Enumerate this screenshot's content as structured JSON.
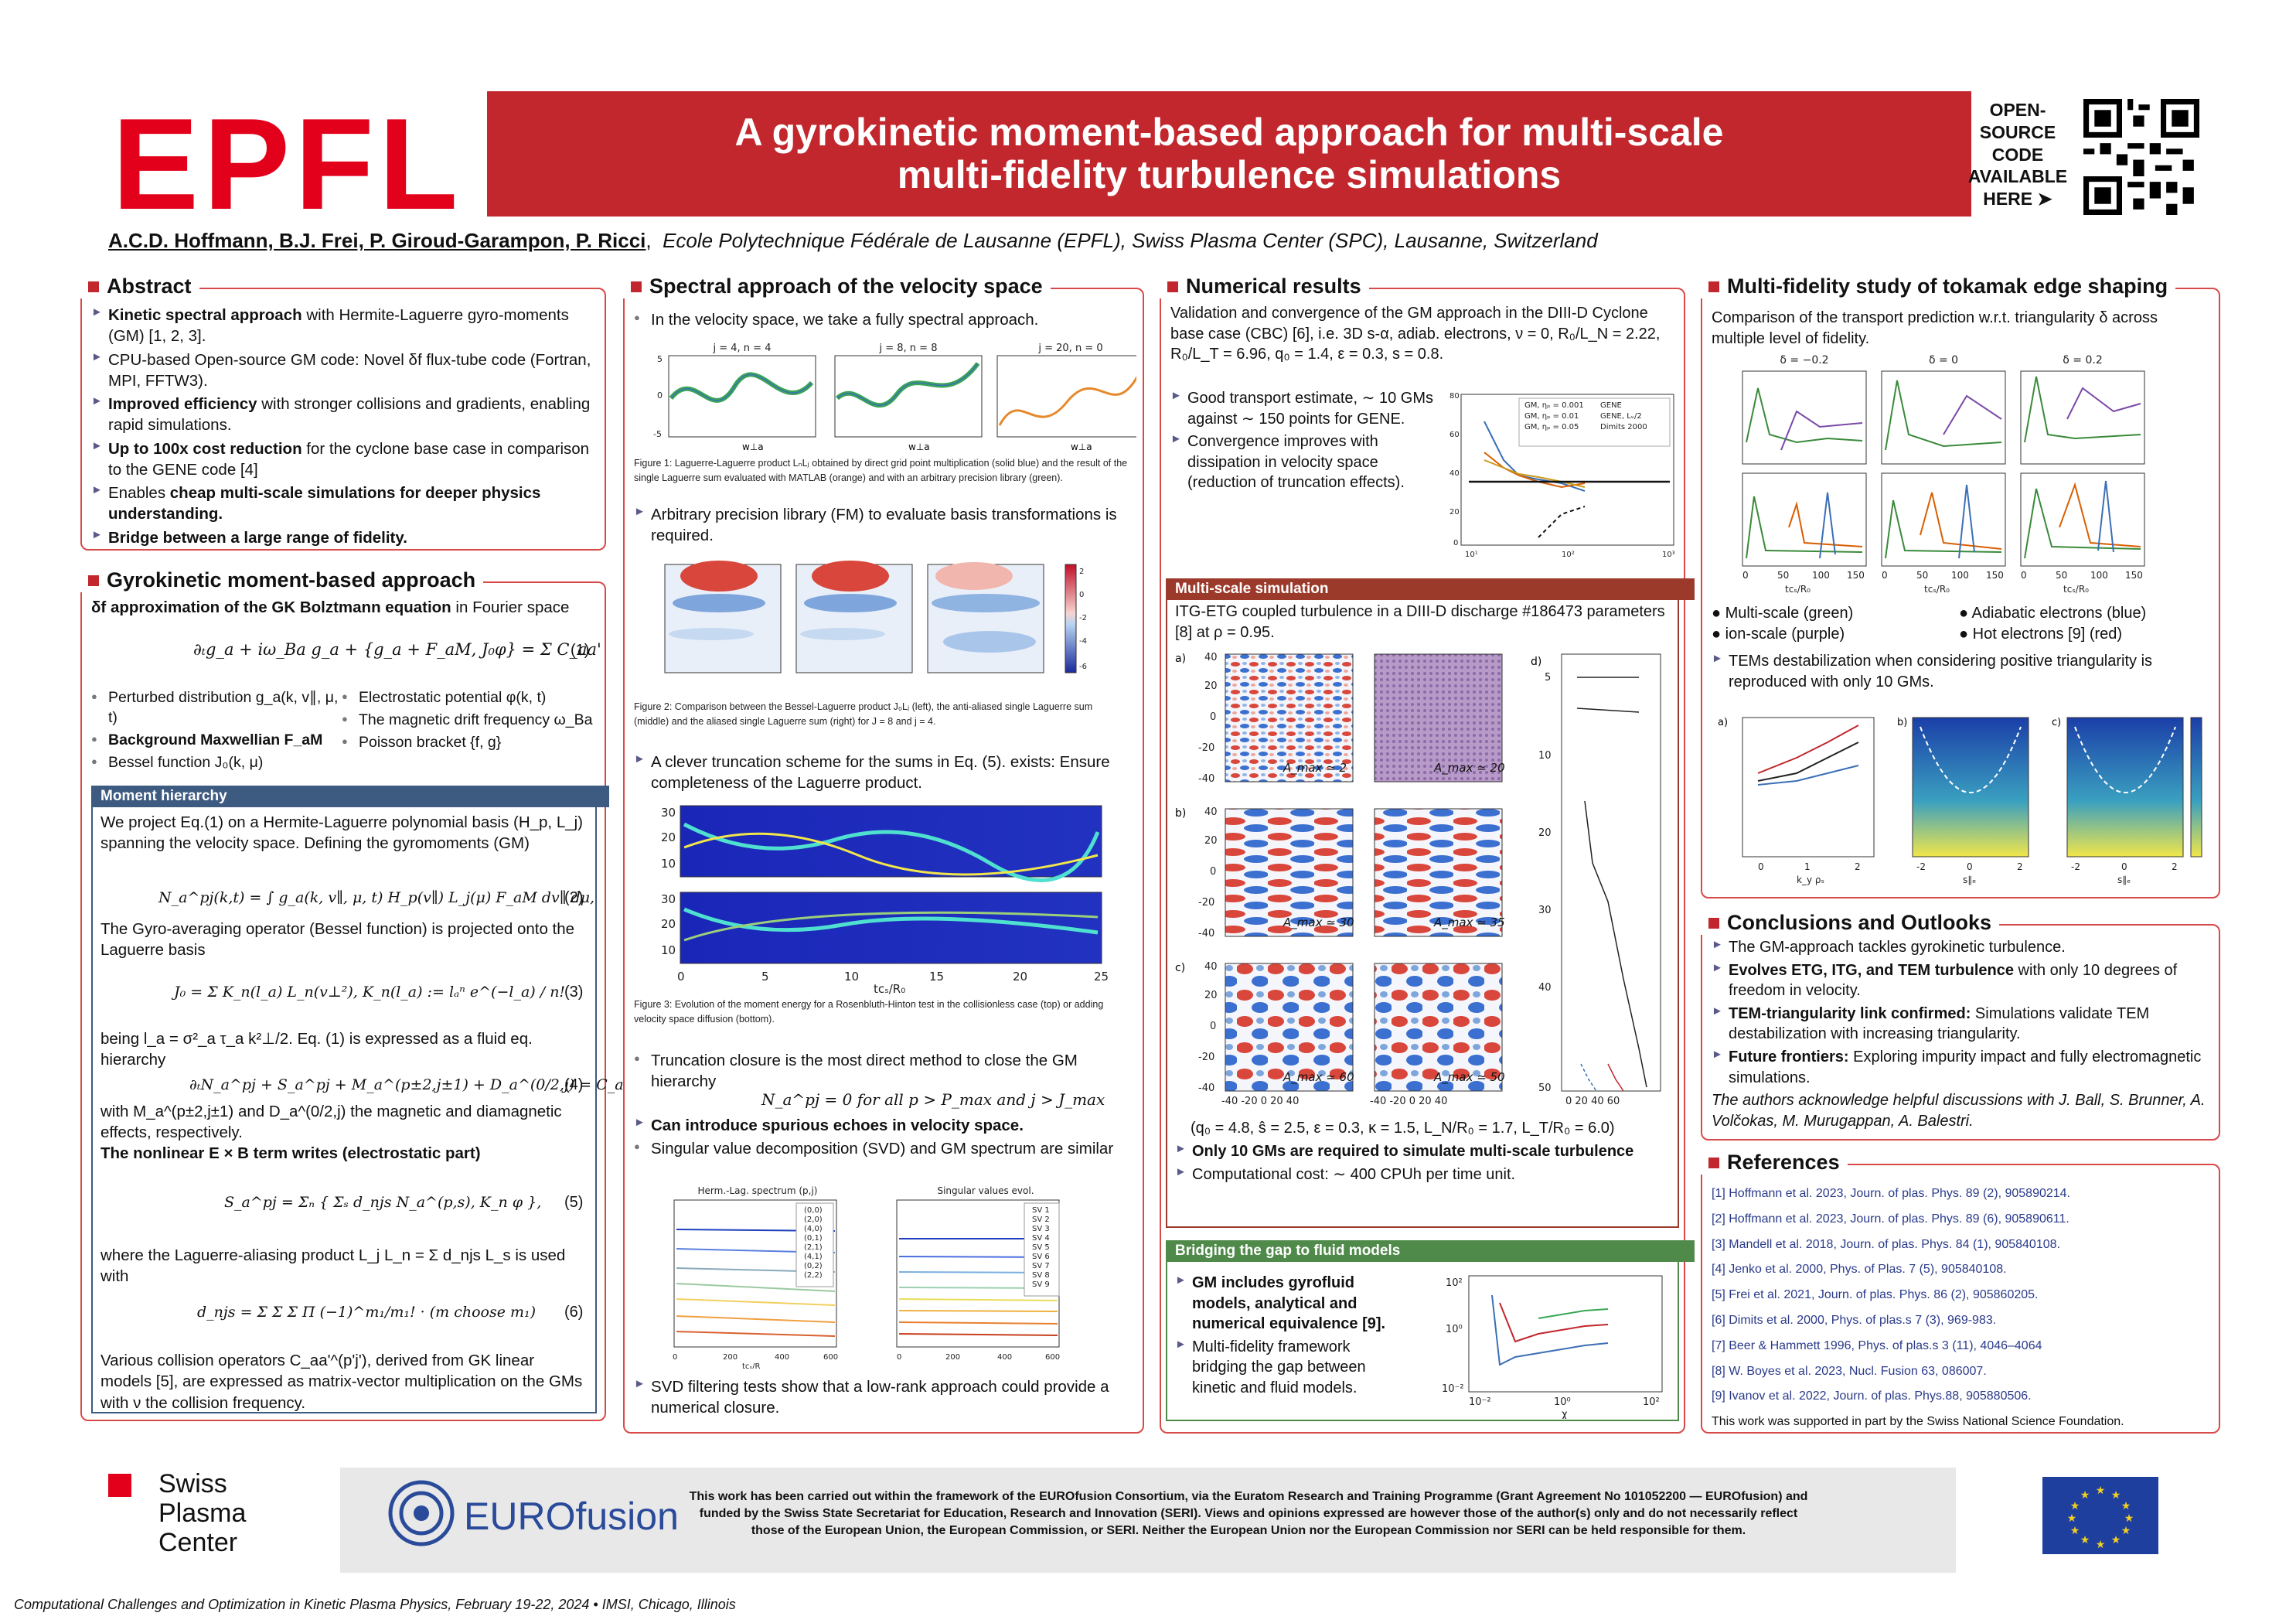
{
  "header": {
    "logo": "EPFL",
    "title_line1": "A gyrokinetic moment-based approach for multi-scale",
    "title_line2": "multi-fidelity turbulence simulations",
    "oss": [
      "OPEN-",
      "SOURCE",
      "CODE",
      "AVAILABLE",
      "HERE ➤"
    ],
    "authors": "A.C.D. Hoffmann, B.J. Frei, P. Giroud-Garampon, P. Ricci",
    "affiliation": "Ecole Polytechnique Fédérale de Lausanne (EPFL), Swiss Plasma Center (SPC), Lausanne, Switzerland",
    "accent": "#c1272d"
  },
  "abstract": {
    "title": "Abstract",
    "items": [
      [
        "Kinetic spectral approach",
        " with Hermite-Laguerre gyro-moments (GM) [1, 2, 3]."
      ],
      [
        "",
        "CPU-based Open-source GM code: Novel δf flux-tube code (Fortran, MPI, FFTW3)."
      ],
      [
        "Improved efficiency",
        " with stronger collisions and gradients, enabling rapid simulations."
      ],
      [
        "Up to 100x cost reduction",
        " for the cyclone base case in comparison to the GENE code [4]"
      ],
      [
        "Enables ",
        "cheap multi-scale simulations for deeper physics understanding."
      ],
      [
        "Bridge between a large range of fidelity.",
        ""
      ]
    ]
  },
  "gk": {
    "title": "Gyrokinetic moment-based approach",
    "intro_bold": "δf approximation of the GK Bolztmann equation",
    "intro_rest": " in Fourier space",
    "eq1": "∂ₜg_a + iω_Ba g_a + {g_a + F_aM, J₀φ} = Σ C_aa'",
    "n1": "(1)",
    "left_items": [
      "Perturbed distribution g_a(k, v∥, μ, t)",
      "Background Maxwellian F_aM",
      "Bessel function J₀(k, μ)"
    ],
    "right_items": [
      "Electrostatic potential φ(k, t)",
      "The magnetic drift frequency ω_Ba",
      "Poisson bracket {f, g}"
    ],
    "moment_hdr": "Moment hierarchy",
    "p1": "We project Eq.(1) on a Hermite-Laguerre polynomial basis (H_p, L_j) spanning the velocity space. Defining the gyromoments (GM)",
    "eq2": "N_a^pj(k,t) = ∫ g_a(k, v∥, μ, t) H_p(v∥) L_j(μ) F_aM dv∥ dμ,",
    "n2": "(2)",
    "p2": "The Gyro-averaging operator (Bessel function) is projected onto the Laguerre basis",
    "eq3": "J₀ = Σ K_n(l_a) L_n(v⊥²),   K_n(l_a) := lₐⁿ e^(−l_a) / n!",
    "n3": "(3)",
    "p3": "being l_a = σ²_a τ_a k²⊥/2. Eq. (1) is expressed as a fluid eq. hierarchy",
    "eq4": "∂ₜN_a^pj + S_a^pj + M_a^(p±2,j±1) + D_a^(0/2,j) = C_a^(p'j')",
    "n4": "(4)",
    "p4": "with M_a^(p±2,j±1) and D_a^(0/2,j) the magnetic and diamagnetic effects, respectively.",
    "p5": "The nonlinear E × B term writes (electrostatic part)",
    "eq5": "S_a^pj = Σₙ { Σₛ d_njs N_a^(p,s), K_n φ },",
    "n5": "(5)",
    "p6": "where the Laguerre-aliasing product L_j L_n = Σ d_njs L_s is used with",
    "eq6": "d_njs = Σ Σ Σ Π (−1)^m₁/m₁! · (m choose m₁)",
    "n6": "(6)",
    "p7": "Various collision operators C_aa'^(p'j'), derived from GK linear models [5], are expressed as matrix-vector multiplication on the GMs with ν the collision frequency."
  },
  "spectral": {
    "title": "Spectral approach of the velocity space",
    "intro": "In the velocity space, we take a fully spectral approach.",
    "fig1_titles": [
      "j = 4, n = 4",
      "j = 8, n = 8",
      "j = 20, n = 0"
    ],
    "fig1_cap": "Figure 1: Laguerre-Laguerre product LₙLⱼ obtained by direct grid point multiplication (solid blue) and the result of the single Laguerre sum evaluated with MATLAB (orange) and with an arbitrary precision library (green).",
    "arb": "Arbitrary precision library (FM) to evaluate basis transformations is required.",
    "fig2_cap": "Figure 2: Comparison between the Bessel-Laguerre product J₀Lⱼ (left), the anti-aliased single Laguerre sum (middle) and the aliased single Laguerre sum (right) for J = 8 and j = 4.",
    "trunc": "A clever truncation scheme for the sums in Eq. (5). exists: Ensure completeness of the Laguerre product.",
    "fig3_cap": "Figure 3: Evolution of the moment energy for a Rosenbluth-Hinton test in the collisionless case (top) or adding velocity space diffusion (bottom).",
    "closure": "Truncation closure is the most direct method to close the GM hierarchy",
    "eq_closure": "N_a^pj = 0 for all p > P_max and j > J_max",
    "echo": "Can introduce spurious echoes in velocity space.",
    "svd": "Singular value decomposition (SVD) and GM spectrum are similar",
    "svd_titles": [
      "Herm.-Lag. spectrum (p,j)",
      "Singular values evol."
    ],
    "svd_filter": "SVD filtering tests show that a low-rank approach could provide a numerical closure."
  },
  "numerical": {
    "title": "Numerical results",
    "intro": "Validation and convergence of the GM approach in the DIII-D Cyclone base case (CBC) [6], i.e. 3D s-α, adiab. electrons, ν = 0, R₀/L_N = 2.22, R₀/L_T = 6.96, q₀ = 1.4, ε = 0.3, s = 0.8.",
    "good": "Good transport estimate, ∼ 10 GMs against ∼ 150 points for GENE.",
    "conv": "Convergence improves with dissipation in velocity space (reduction of truncation effects).",
    "legend": [
      "GM, ηₚ = 0.001",
      "GM, ηₚ = 0.01",
      "GM, ηₚ = 0.05",
      "GENE",
      "GENE, Lᵥ/2",
      "Dimits 2000"
    ],
    "ms_hdr": "Multi-scale simulation",
    "ms_intro": "ITG-ETG coupled turbulence in a DIII-D discharge #186473 parameters [8] at ρ = 0.95.",
    "amax": [
      "A_max ≃ 2",
      "A_max ≃ 20",
      "A_max ≃ 30",
      "A_max ≃ 35",
      "A_max ≃ 60",
      "A_max ≃ 50"
    ],
    "ms_params": "(q₀ = 4.8, ŝ = 2.5, ε = 0.3, κ = 1.5, L_N/R₀ = 1.7, L_T/R₀ = 6.0)",
    "ms_b1": "Only 10 GMs are required to simulate multi-scale turbulence",
    "ms_b2": "Computational cost: ∼ 400 CPUh per time unit.",
    "fluid_hdr": "Bridging the gap to fluid models",
    "fluid_b1": "GM includes gyrofluid models, analytical and numerical equivalence [9].",
    "fluid_b2": "Multi-fidelity framework bridging the gap between kinetic and fluid models."
  },
  "multifid": {
    "title": "Multi-fidelity study of tokamak edge shaping",
    "intro": "Comparison of the transport prediction w.r.t. triangularity δ across multiple level of fidelity.",
    "deltas": [
      "δ = −0.2",
      "δ = 0",
      "δ = 0.2"
    ],
    "legend": [
      "Multi-scale (green)",
      "Adiabatic electrons (blue)",
      "ion-scale (purple)",
      "Hot electrons [9] (red)"
    ],
    "tem": "TEMs destabilization when considering positive triangularity is reproduced with only 10 GMs."
  },
  "conclusions": {
    "title": "Conclusions and Outlooks",
    "items": [
      [
        "",
        "The GM-approach tackles gyrokinetic turbulence."
      ],
      [
        "Evolves ETG, ITG, and TEM turbulence",
        " with only 10 degrees of freedom in velocity."
      ],
      [
        "TEM-triangularity link confirmed:",
        " Simulations validate TEM destabilization with increasing triangularity."
      ],
      [
        "Future frontiers:",
        " Exploring impurity impact and fully electromagnetic simulations."
      ]
    ],
    "ack": "The authors acknowledge helpful discussions with J. Ball, S. Brunner, A. Volčokas, M. Murugappan, A. Balestri."
  },
  "references": {
    "title": "References",
    "items": [
      "[1] Hoffmann et al. 2023, Journ. of plas. Phys. 89 (2), 905890214.",
      "[2] Hoffmann et al. 2023, Journ. of plas. Phys. 89 (6), 905890611.",
      "[3] Mandell et al. 2018, Journ. of plas. Phys. 84 (1), 905840108.",
      "[4] Jenko et al. 2000, Phys. of Plas. 7 (5), 905840108.",
      "[5] Frei et al. 2021, Journ. of plas. Phys. 86 (2), 905860205.",
      "[6] Dimits et al. 2000, Phys. of plas.s 7 (3), 969-983.",
      "[7] Beer & Hammett 1996, Phys. of plas.s 3 (11), 4046–4064",
      "[8] W. Boyes et al. 2023, Nucl. Fusion 63, 086007.",
      "[9] Ivanov et al. 2022, Journ. of plas. Phys.88, 905880506."
    ],
    "support": "This work was supported in part by the Swiss National Science Foundation."
  },
  "footer": {
    "spc": [
      "Swiss",
      "Plasma",
      "Center"
    ],
    "eurofusion": "EUROfusion",
    "funding": "This work has been carried out within the framework of the EUROfusion Consortium, via the Euratom Research and Training Programme (Grant Agreement No 101052200 — EUROfusion) and funded by the Swiss State Secretariat for Education, Research and Innovation (SERI). Views and opinions expressed are however those of the author(s) only and do not necessarily reflect those of the European Union, the European Commission, or SERI. Neither the European Union nor the European Commission nor SERI can be held responsible for them.",
    "conference": "Computational Challenges and Optimization in Kinetic Plasma Physics, February 19-22, 2024 • IMSI, Chicago, Illinois"
  }
}
